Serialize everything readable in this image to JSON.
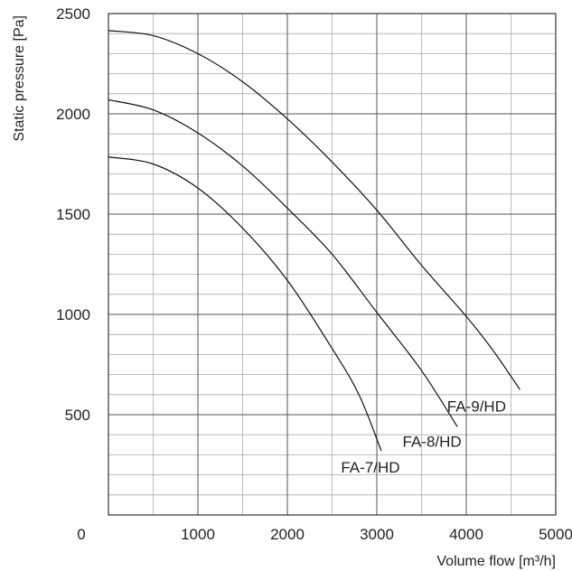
{
  "chart_data": {
    "type": "line",
    "title": "",
    "xlabel": "Volume flow [m³/h]",
    "ylabel": "Static pressure [Pa]",
    "xlim": [
      0,
      5000
    ],
    "ylim": [
      0,
      2500
    ],
    "x_ticks": [
      "0",
      "1000",
      "2000",
      "3000",
      "4000",
      "5000"
    ],
    "y_ticks": [
      "500",
      "1000",
      "1500",
      "2000",
      "2500"
    ],
    "grid": true,
    "x_minor_step": 500,
    "y_minor_step": 100,
    "colors": {
      "grid_major": "#555555",
      "grid_minor": "#aaaaaa",
      "line": "#111111"
    },
    "series": [
      {
        "name": "FA-9/HD",
        "points": [
          [
            0,
            2415
          ],
          [
            500,
            2390
          ],
          [
            1000,
            2300
          ],
          [
            1500,
            2160
          ],
          [
            2000,
            1975
          ],
          [
            2500,
            1760
          ],
          [
            3000,
            1520
          ],
          [
            3500,
            1245
          ],
          [
            4000,
            990
          ],
          [
            4300,
            820
          ],
          [
            4600,
            625
          ]
        ]
      },
      {
        "name": "FA-8/HD",
        "points": [
          [
            0,
            2070
          ],
          [
            500,
            2020
          ],
          [
            1000,
            1905
          ],
          [
            1500,
            1740
          ],
          [
            2000,
            1530
          ],
          [
            2500,
            1300
          ],
          [
            3000,
            1010
          ],
          [
            3500,
            720
          ],
          [
            3900,
            440
          ]
        ]
      },
      {
        "name": "FA-7/HD",
        "points": [
          [
            0,
            1785
          ],
          [
            500,
            1750
          ],
          [
            1000,
            1630
          ],
          [
            1500,
            1430
          ],
          [
            2000,
            1170
          ],
          [
            2500,
            830
          ],
          [
            2800,
            600
          ],
          [
            3050,
            320
          ]
        ]
      }
    ]
  }
}
